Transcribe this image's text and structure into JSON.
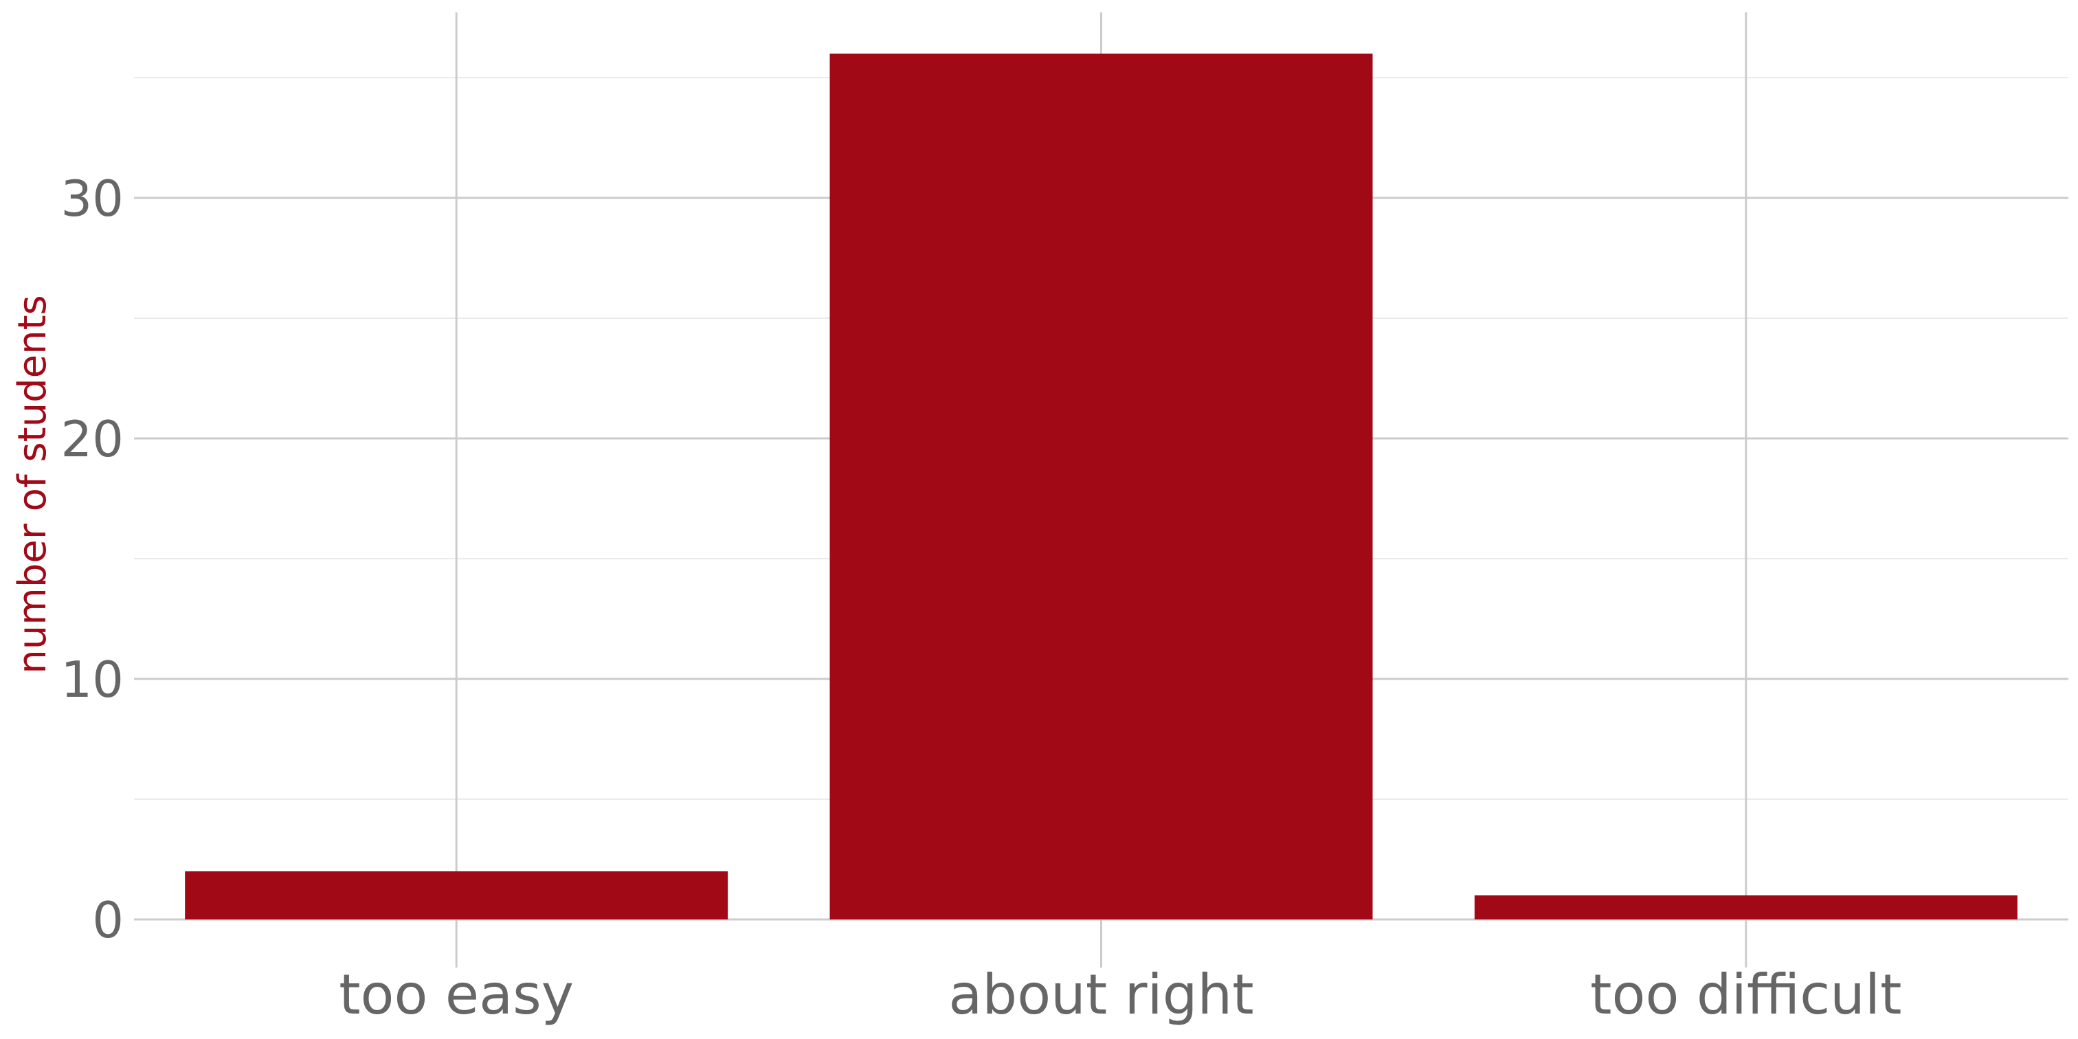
{
  "chart_data": {
    "type": "bar",
    "categories": [
      "too easy",
      "about right",
      "too difficult"
    ],
    "values": [
      2,
      36,
      1
    ],
    "title": "",
    "xlabel": "",
    "ylabel": "number of students",
    "ylim": [
      0,
      37.2
    ],
    "yticks": [
      0,
      10,
      20,
      30
    ],
    "y_minor_ticks": [
      5,
      15,
      25,
      35
    ],
    "grid": true,
    "legend": "none",
    "colors": {
      "bar": "#a20917",
      "ylabel": "#a20917",
      "tick_text": "#666666",
      "grid_major": "#cccccc",
      "grid_minor": "#ebebeb"
    }
  }
}
